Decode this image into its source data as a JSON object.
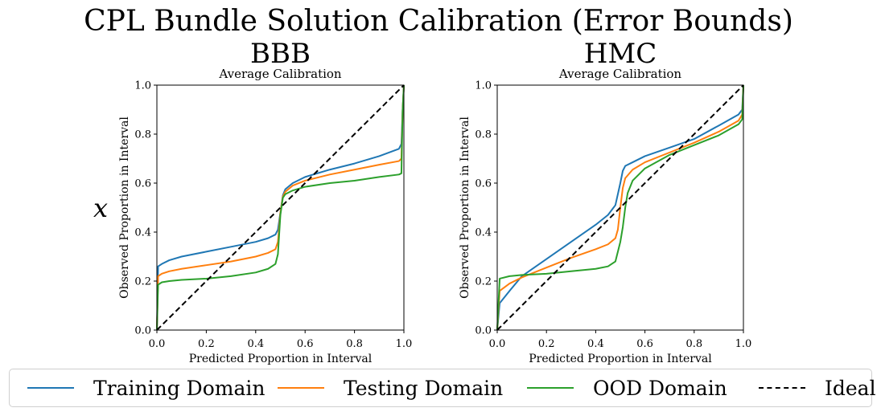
{
  "figure": {
    "suptitle": "CPL Bundle Solution Calibration (Error Bounds)",
    "row_label": "x"
  },
  "colors": {
    "training": "#1f77b4",
    "testing": "#ff7f0e",
    "ood": "#2ca02c",
    "ideal": "#000000"
  },
  "legend": {
    "entries": [
      {
        "key": "training",
        "label": "Training Domain",
        "style": "solid"
      },
      {
        "key": "testing",
        "label": "Testing Domain",
        "style": "solid"
      },
      {
        "key": "ood",
        "label": "OOD Domain",
        "style": "solid"
      },
      {
        "key": "ideal",
        "label": "Ideal",
        "style": "dashed"
      }
    ]
  },
  "chart_data": [
    {
      "type": "line",
      "panel_title": "BBB",
      "title": "Average Calibration",
      "xlabel": "Predicted Proportion in Interval",
      "ylabel": "Observed Proportion in Interval",
      "xlim": [
        0,
        1
      ],
      "ylim": [
        0,
        1
      ],
      "xticks": [
        "0.0",
        "0.2",
        "0.4",
        "0.6",
        "0.8",
        "1.0"
      ],
      "yticks": [
        "0.0",
        "0.2",
        "0.4",
        "0.6",
        "0.8",
        "1.0"
      ],
      "grid": false,
      "series": [
        {
          "key": "training",
          "name": "Training Domain",
          "x": [
            0,
            0.005,
            0.02,
            0.05,
            0.1,
            0.2,
            0.3,
            0.4,
            0.45,
            0.48,
            0.49,
            0.5,
            0.51,
            0.52,
            0.55,
            0.6,
            0.7,
            0.8,
            0.9,
            0.98,
            0.99,
            0.995,
            1.0
          ],
          "y": [
            0,
            0.26,
            0.27,
            0.285,
            0.3,
            0.32,
            0.34,
            0.36,
            0.375,
            0.39,
            0.41,
            0.48,
            0.55,
            0.575,
            0.6,
            0.625,
            0.655,
            0.68,
            0.71,
            0.74,
            0.76,
            0.9,
            1.0
          ]
        },
        {
          "key": "testing",
          "name": "Testing Domain",
          "x": [
            0,
            0.005,
            0.02,
            0.05,
            0.1,
            0.2,
            0.3,
            0.4,
            0.45,
            0.48,
            0.49,
            0.5,
            0.51,
            0.52,
            0.55,
            0.6,
            0.7,
            0.8,
            0.9,
            0.98,
            0.99,
            0.995,
            1.0
          ],
          "y": [
            0,
            0.22,
            0.23,
            0.24,
            0.25,
            0.265,
            0.28,
            0.3,
            0.315,
            0.33,
            0.36,
            0.48,
            0.545,
            0.565,
            0.59,
            0.61,
            0.635,
            0.655,
            0.675,
            0.69,
            0.7,
            0.9,
            1.0
          ]
        },
        {
          "key": "ood",
          "name": "OOD Domain",
          "x": [
            0,
            0.005,
            0.02,
            0.05,
            0.1,
            0.2,
            0.3,
            0.4,
            0.45,
            0.48,
            0.49,
            0.5,
            0.51,
            0.52,
            0.55,
            0.6,
            0.7,
            0.8,
            0.9,
            0.98,
            0.99,
            0.995,
            1.0
          ],
          "y": [
            0,
            0.185,
            0.195,
            0.2,
            0.205,
            0.21,
            0.22,
            0.235,
            0.25,
            0.27,
            0.31,
            0.47,
            0.54,
            0.555,
            0.57,
            0.585,
            0.6,
            0.61,
            0.625,
            0.635,
            0.64,
            0.9,
            1.0
          ]
        },
        {
          "key": "ideal",
          "name": "Ideal",
          "x": [
            0,
            1
          ],
          "y": [
            0,
            1
          ]
        }
      ]
    },
    {
      "type": "line",
      "panel_title": "HMC",
      "title": "Average Calibration",
      "xlabel": "Predicted Proportion in Interval",
      "ylabel": "Observed Proportion in Interval",
      "xlim": [
        0,
        1
      ],
      "ylim": [
        0,
        1
      ],
      "xticks": [
        "0.0",
        "0.2",
        "0.4",
        "0.6",
        "0.8",
        "1.0"
      ],
      "yticks": [
        "0.0",
        "0.2",
        "0.4",
        "0.6",
        "0.8",
        "1.0"
      ],
      "grid": false,
      "series": [
        {
          "key": "training",
          "name": "Training Domain",
          "x": [
            0,
            0.01,
            0.05,
            0.1,
            0.2,
            0.3,
            0.4,
            0.45,
            0.48,
            0.5,
            0.51,
            0.52,
            0.55,
            0.6,
            0.7,
            0.8,
            0.9,
            0.98,
            0.995,
            1.0
          ],
          "y": [
            0,
            0.11,
            0.16,
            0.22,
            0.29,
            0.36,
            0.43,
            0.47,
            0.51,
            0.6,
            0.65,
            0.67,
            0.685,
            0.71,
            0.745,
            0.78,
            0.835,
            0.88,
            0.9,
            1.0
          ]
        },
        {
          "key": "testing",
          "name": "Testing Domain",
          "x": [
            0,
            0.01,
            0.05,
            0.1,
            0.2,
            0.3,
            0.4,
            0.45,
            0.48,
            0.49,
            0.5,
            0.51,
            0.52,
            0.55,
            0.6,
            0.7,
            0.8,
            0.9,
            0.98,
            0.995,
            1.0
          ],
          "y": [
            0,
            0.16,
            0.19,
            0.215,
            0.255,
            0.295,
            0.33,
            0.35,
            0.375,
            0.41,
            0.5,
            0.58,
            0.62,
            0.655,
            0.685,
            0.725,
            0.765,
            0.81,
            0.855,
            0.88,
            1.0
          ]
        },
        {
          "key": "ood",
          "name": "OOD Domain",
          "x": [
            0,
            0.01,
            0.05,
            0.1,
            0.2,
            0.3,
            0.4,
            0.45,
            0.48,
            0.5,
            0.51,
            0.52,
            0.53,
            0.55,
            0.6,
            0.7,
            0.8,
            0.9,
            0.98,
            0.995,
            1.0
          ],
          "y": [
            0,
            0.21,
            0.22,
            0.225,
            0.23,
            0.24,
            0.25,
            0.26,
            0.28,
            0.36,
            0.42,
            0.5,
            0.56,
            0.61,
            0.66,
            0.715,
            0.755,
            0.795,
            0.84,
            0.86,
            1.0
          ]
        },
        {
          "key": "ideal",
          "name": "Ideal",
          "x": [
            0,
            1
          ],
          "y": [
            0,
            1
          ]
        }
      ]
    }
  ]
}
